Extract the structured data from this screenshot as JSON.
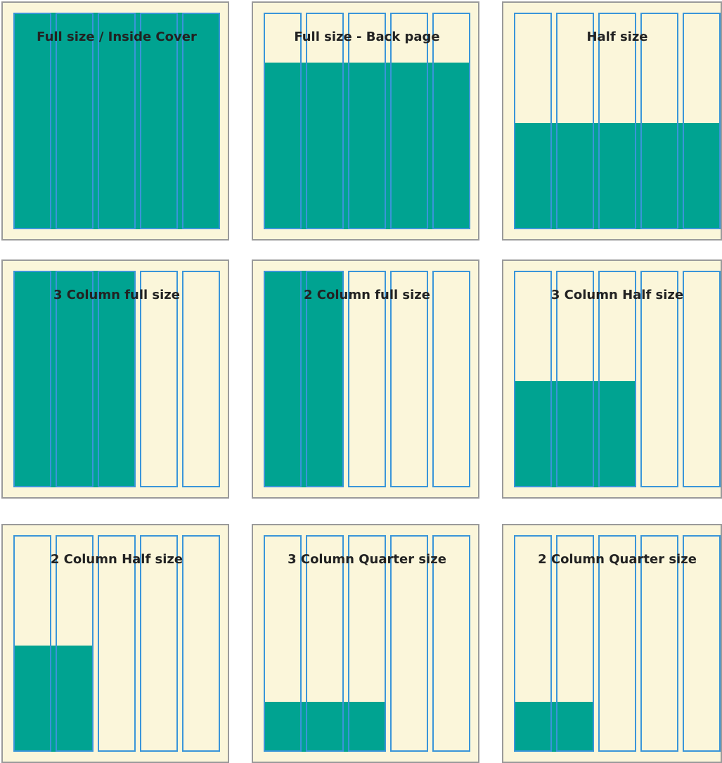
{
  "colors": {
    "background": "#fbf6da",
    "fill": "#00a391",
    "column_outline": "#3a95d9",
    "panel_border": "#9a9a9a"
  },
  "columns_per_page": 5,
  "panels": [
    {
      "title": "Full size / Inside Cover",
      "fill_columns": 5,
      "fill_fraction": 1.0
    },
    {
      "title": "Full size - Back page",
      "fill_columns": 5,
      "fill_fraction": 0.77
    },
    {
      "title": "Half size",
      "fill_columns": 5,
      "fill_fraction": 0.49
    },
    {
      "title": "3 Column full size",
      "fill_columns": 3,
      "fill_fraction": 1.0
    },
    {
      "title": "2 Column full size",
      "fill_columns": 2,
      "fill_fraction": 1.0
    },
    {
      "title": "3 Column Half size",
      "fill_columns": 3,
      "fill_fraction": 0.49
    },
    {
      "title": "2 Column Half size",
      "fill_columns": 2,
      "fill_fraction": 0.49
    },
    {
      "title": "3 Column Quarter size",
      "fill_columns": 3,
      "fill_fraction": 0.23
    },
    {
      "title": "2 Column Quarter size",
      "fill_columns": 2,
      "fill_fraction": 0.23
    }
  ]
}
